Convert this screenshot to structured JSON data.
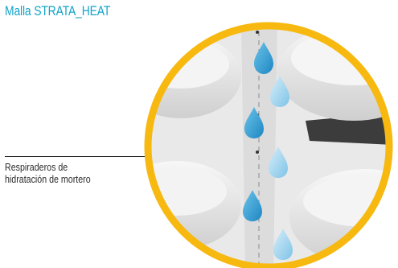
{
  "title": "Malla STRATA_HEAT",
  "callout": {
    "line1": "Respiraderos de",
    "line2": "hidratación de mortero"
  },
  "colors": {
    "title": "#12a3c9",
    "ring": "#f7b80f",
    "drop_dark": "#2b9fd3",
    "drop_light": "#9fd6ee"
  },
  "icons": [
    "water-drop-icon"
  ]
}
